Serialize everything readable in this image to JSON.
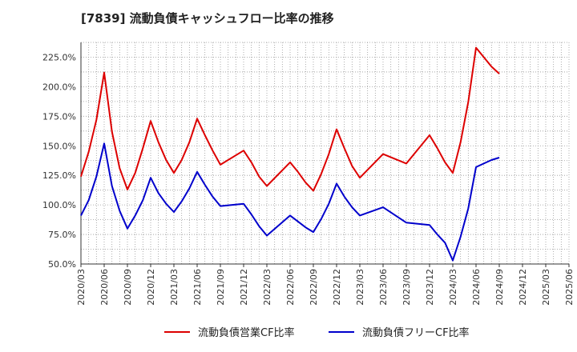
{
  "title": "[7839]  流動負債キャッシュフロー比率の推移",
  "chart_data": {
    "type": "line",
    "title": "[7839]  流動負債キャッシュフロー比率の推移",
    "xlabel": "",
    "ylabel": "",
    "ylim": [
      50,
      237.5
    ],
    "y_ticks": [
      "50.0%",
      "75.0%",
      "100.0%",
      "125.0%",
      "150.0%",
      "175.0%",
      "200.0%",
      "225.0%"
    ],
    "x_ticks": [
      "2020/03",
      "2020/06",
      "2020/09",
      "2020/12",
      "2021/03",
      "2021/06",
      "2021/09",
      "2021/12",
      "2022/03",
      "2022/06",
      "2022/09",
      "2022/12",
      "2023/03",
      "2023/06",
      "2023/09",
      "2023/12",
      "2024/03",
      "2024/06",
      "2024/09",
      "2024/12",
      "2025/03",
      "2025/06"
    ],
    "grid": true,
    "legend_position": "bottom",
    "series": [
      {
        "name": "流動負債営業CF比率",
        "color": "#dd0000",
        "x": [
          "2020/03",
          "2020/04",
          "2020/05",
          "2020/06",
          "2020/07",
          "2020/08",
          "2020/09",
          "2020/10",
          "2020/11",
          "2020/12",
          "2021/01",
          "2021/02",
          "2021/03",
          "2021/04",
          "2021/05",
          "2021/06",
          "2021/07",
          "2021/08",
          "2021/09",
          "2021/12",
          "2022/01",
          "2022/02",
          "2022/03",
          "2022/06",
          "2022/07",
          "2022/08",
          "2022/09",
          "2022/10",
          "2022/11",
          "2022/12",
          "2023/01",
          "2023/02",
          "2023/03",
          "2023/06",
          "2023/09",
          "2023/12",
          "2024/01",
          "2024/02",
          "2024/03",
          "2024/04",
          "2024/05",
          "2024/06",
          "2024/07",
          "2024/08",
          "2024/09"
        ],
        "values": [
          124,
          145,
          172,
          212,
          162,
          131,
          113,
          127,
          148,
          171,
          153,
          138,
          127,
          138,
          153,
          173,
          159,
          146,
          134,
          146,
          136,
          124,
          116,
          136,
          128,
          119,
          112,
          126,
          143,
          164,
          148,
          133,
          123,
          143,
          135,
          159,
          148,
          136,
          127,
          153,
          187,
          233,
          225,
          217,
          211
        ]
      },
      {
        "name": "流動負債フリーCF比率",
        "color": "#0000cc",
        "x": [
          "2020/03",
          "2020/04",
          "2020/05",
          "2020/06",
          "2020/07",
          "2020/08",
          "2020/09",
          "2020/10",
          "2020/11",
          "2020/12",
          "2021/01",
          "2021/02",
          "2021/03",
          "2021/04",
          "2021/05",
          "2021/06",
          "2021/07",
          "2021/08",
          "2021/09",
          "2021/12",
          "2022/01",
          "2022/02",
          "2022/03",
          "2022/06",
          "2022/07",
          "2022/08",
          "2022/09",
          "2022/10",
          "2022/11",
          "2022/12",
          "2023/01",
          "2023/02",
          "2023/03",
          "2023/06",
          "2023/09",
          "2023/12",
          "2024/01",
          "2024/02",
          "2024/03",
          "2024/04",
          "2024/05",
          "2024/06",
          "2024/07",
          "2024/08",
          "2024/09"
        ],
        "values": [
          91,
          104,
          124,
          152,
          116,
          95,
          80,
          91,
          104,
          123,
          110,
          101,
          94,
          103,
          114,
          128,
          117,
          107,
          99,
          101,
          92,
          82,
          74,
          91,
          86,
          81,
          77,
          88,
          101,
          118,
          107,
          98,
          91,
          98,
          85,
          83,
          75,
          68,
          53,
          73,
          97,
          132,
          135,
          138,
          140
        ]
      }
    ]
  }
}
